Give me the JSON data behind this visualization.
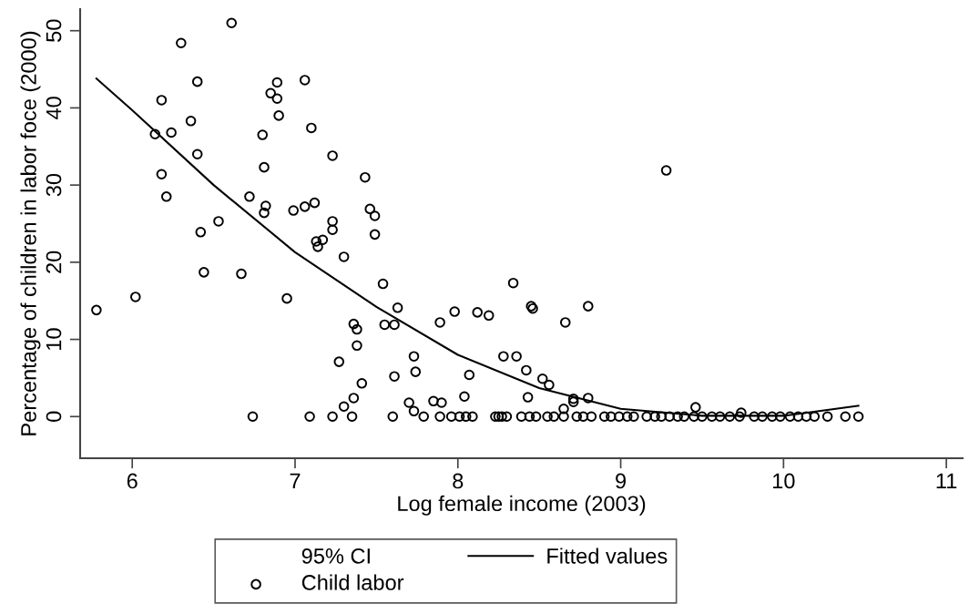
{
  "chart_data": {
    "type": "scatter",
    "xlabel": "Log female income (2003)",
    "ylabel": "Percentage of children in labor foce (2000)",
    "xlim": [
      5.68,
      11.1
    ],
    "ylim": [
      -5.4,
      52.8
    ],
    "xticks": [
      6,
      7,
      8,
      9,
      10,
      11
    ],
    "yticks": [
      0,
      10,
      20,
      30,
      40,
      50
    ],
    "grid": false,
    "legend": "bottom",
    "annotations": [
      "95% CI"
    ],
    "series": [
      {
        "name": "Child labor",
        "color": "#000000",
        "marker": "circle",
        "x": [
          6.61,
          6.3,
          6.4,
          6.18,
          6.89,
          7.06,
          6.85,
          6.89,
          6.9,
          6.36,
          6.14,
          6.24,
          6.8,
          7.1,
          6.4,
          7.23,
          6.81,
          6.18,
          6.21,
          6.72,
          6.82,
          6.81,
          6.99,
          7.06,
          7.12,
          6.53,
          6.42,
          7.23,
          7.23,
          7.13,
          7.17,
          7.14,
          7.3,
          7.43,
          7.46,
          7.49,
          7.49,
          5.78,
          6.02,
          6.44,
          6.67,
          6.95,
          6.74,
          7.09,
          7.23,
          7.35,
          7.36,
          7.38,
          7.38,
          7.27,
          7.3,
          7.36,
          7.41,
          7.54,
          8.34,
          7.63,
          7.98,
          8.12,
          8.19,
          8.45,
          8.46,
          8.8,
          8.66,
          7.89,
          7.55,
          7.61,
          7.73,
          8.28,
          8.36,
          7.74,
          8.42,
          7.61,
          8.07,
          8.52,
          8.56,
          8.43,
          8.04,
          7.7,
          7.85,
          7.9,
          8.71,
          8.71,
          8.8,
          8.65,
          7.73,
          7.6,
          7.79,
          7.89,
          7.96,
          8.01,
          8.05,
          8.09,
          8.23,
          8.25,
          8.27,
          8.3,
          8.39,
          8.44,
          8.48,
          8.55,
          8.59,
          8.65,
          8.73,
          8.77,
          8.82,
          8.9,
          8.94,
          8.99,
          9.04,
          9.08,
          9.16,
          9.28,
          9.46,
          9.74,
          9.21,
          9.25,
          9.3,
          9.35,
          9.39,
          9.45,
          9.5,
          9.56,
          9.61,
          9.67,
          9.73,
          9.82,
          9.87,
          9.93,
          9.98,
          10.04,
          10.09,
          10.14,
          10.19,
          10.27,
          10.38,
          10.46
        ],
        "values": [
          51.0,
          48.4,
          43.4,
          41.0,
          43.3,
          43.6,
          41.9,
          41.2,
          39.0,
          38.3,
          36.6,
          36.8,
          36.5,
          37.4,
          34.0,
          33.8,
          32.3,
          31.4,
          28.5,
          28.5,
          27.3,
          26.4,
          26.7,
          27.2,
          27.7,
          25.3,
          23.9,
          25.3,
          24.2,
          22.7,
          22.9,
          22.0,
          20.7,
          31.0,
          26.9,
          26.0,
          23.6,
          13.8,
          15.5,
          18.7,
          18.5,
          15.3,
          0,
          0,
          0,
          0,
          12.0,
          11.3,
          9.2,
          7.1,
          1.3,
          2.4,
          4.3,
          17.2,
          17.3,
          14.1,
          13.6,
          13.5,
          13.1,
          14.3,
          14.0,
          14.3,
          12.2,
          12.2,
          11.9,
          11.9,
          7.8,
          7.8,
          7.8,
          5.8,
          6.0,
          5.2,
          5.4,
          4.9,
          4.1,
          2.5,
          2.6,
          1.8,
          2.0,
          1.8,
          2.3,
          1.9,
          2.4,
          1.0,
          0.7,
          0,
          0,
          0,
          0,
          0,
          0,
          0,
          0,
          0,
          0,
          0,
          0,
          0,
          0,
          0,
          0,
          0,
          0,
          0,
          0,
          0,
          0,
          0,
          0,
          0,
          0,
          31.9,
          1.2,
          0.5,
          0,
          0,
          0,
          0,
          0,
          0,
          0,
          0,
          0,
          0,
          0,
          0,
          0,
          0,
          0,
          0,
          0,
          0,
          0,
          0,
          0,
          0
        ]
      },
      {
        "name": "Fitted values",
        "type": "line",
        "color": "#000000",
        "line_style": "solid",
        "marker": "none",
        "x": [
          5.78,
          6.0,
          6.5,
          7.0,
          7.5,
          8.0,
          8.5,
          9.0,
          9.5,
          10.0,
          10.46
        ],
        "values": [
          43.8,
          39.7,
          30.0,
          21.3,
          14.2,
          8.0,
          3.7,
          1.0,
          0.1,
          0.1,
          1.4
        ]
      }
    ]
  }
}
